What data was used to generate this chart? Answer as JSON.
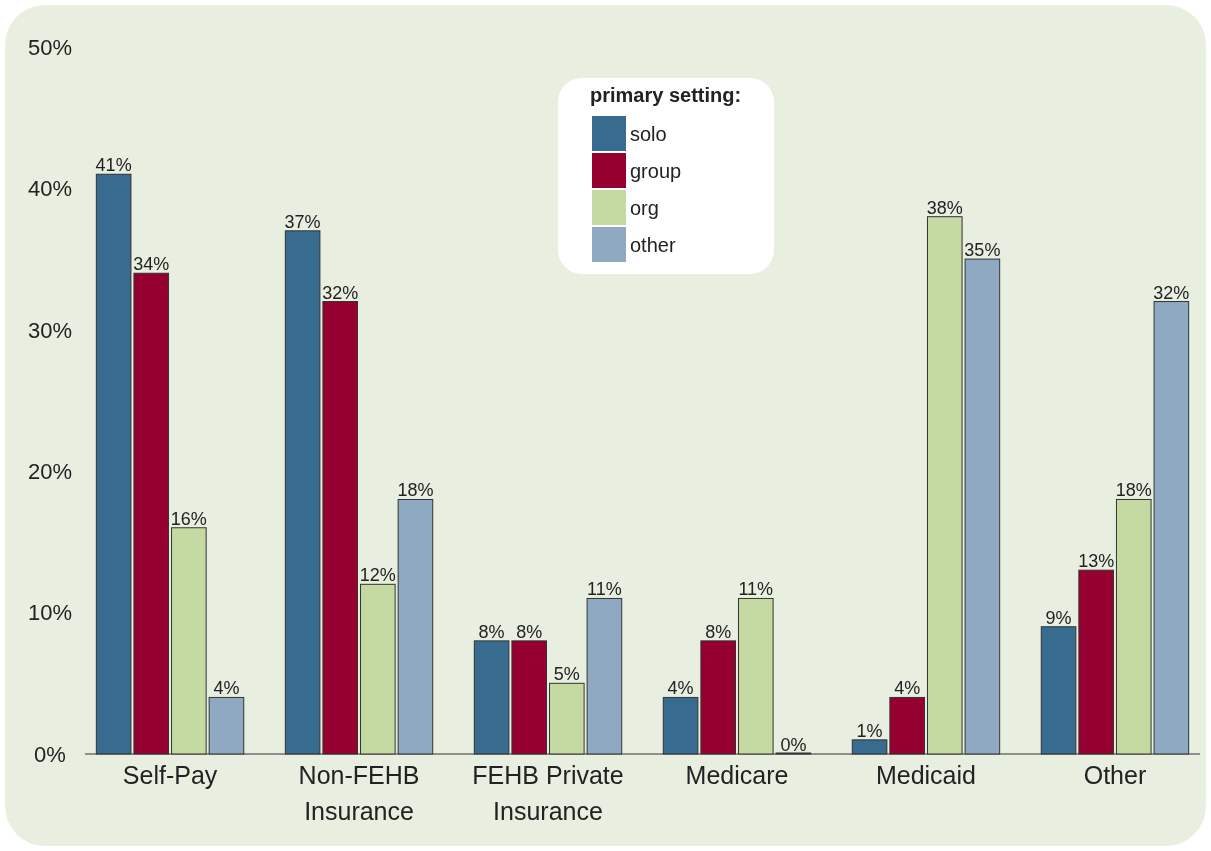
{
  "chart_data": {
    "type": "bar",
    "legend_title": "primary setting:",
    "legend": "top",
    "categories": [
      "Self-Pay",
      "Non-FEHB Insurance",
      "FEHB Private Insurance",
      "Medicare",
      "Medicaid",
      "Other"
    ],
    "series": [
      {
        "name": "solo",
        "color": "#376b8f",
        "values": [
          41,
          37,
          8,
          4,
          1,
          9
        ],
        "value_labels": [
          "41%",
          "37%",
          "8%",
          "4%",
          "1%",
          "9%"
        ]
      },
      {
        "name": "group",
        "color": "#960030",
        "values": [
          34,
          32,
          8,
          8,
          4,
          13
        ],
        "value_labels": [
          "34%",
          "32%",
          "8%",
          "8%",
          "4%",
          "13%"
        ]
      },
      {
        "name": "org",
        "color": "#c5d9a3",
        "values": [
          16,
          12,
          5,
          11,
          38,
          18
        ],
        "value_labels": [
          "16%",
          "12%",
          "5%",
          "11%",
          "38%",
          "18%"
        ]
      },
      {
        "name": "other",
        "color": "#8ea9c1",
        "values": [
          4,
          18,
          11,
          0,
          35,
          32
        ],
        "value_labels": [
          "4%",
          "18%",
          "11%",
          "0%",
          "35%",
          "32%"
        ]
      }
    ],
    "ylim": [
      0,
      50
    ],
    "yticks": [
      {
        "value": 0,
        "label": "0%"
      },
      {
        "value": 10,
        "label": "10%"
      },
      {
        "value": 20,
        "label": "20%"
      },
      {
        "value": 30,
        "label": "30%"
      },
      {
        "value": 40,
        "label": "40%"
      },
      {
        "value": 50,
        "label": "50%"
      }
    ]
  }
}
